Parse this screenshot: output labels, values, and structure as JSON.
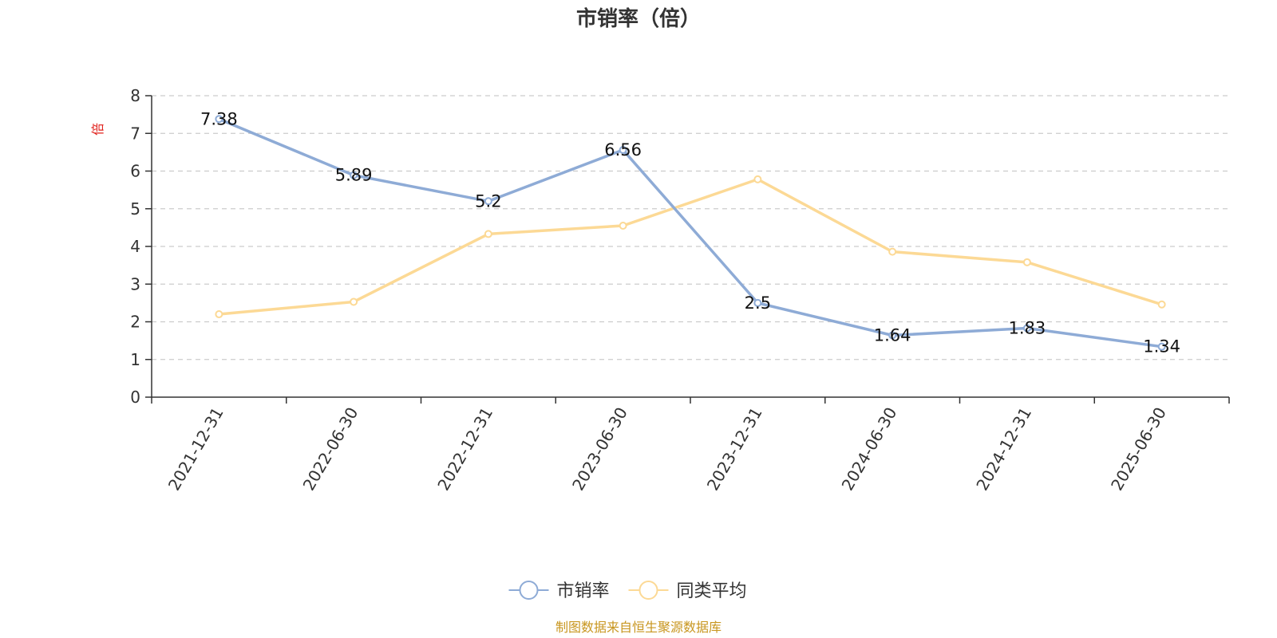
{
  "chart_data": {
    "type": "line",
    "title": "市销率（倍）",
    "unit": "倍",
    "categories": [
      "2021-12-31",
      "2022-06-30",
      "2022-12-31",
      "2023-06-30",
      "2023-12-31",
      "2024-06-30",
      "2024-12-31",
      "2025-06-30"
    ],
    "ylim": [
      0,
      8
    ],
    "yticks": [
      0,
      1,
      2,
      3,
      4,
      5,
      6,
      7,
      8
    ],
    "grid": true,
    "legend": "bottom-center",
    "series": [
      {
        "name": "市销率",
        "color": "#8eabd6",
        "values": [
          7.38,
          5.89,
          5.2,
          6.56,
          2.5,
          1.64,
          1.83,
          1.34
        ],
        "show_labels": true
      },
      {
        "name": "同类平均",
        "color": "#fcd995",
        "values": [
          2.2,
          2.53,
          4.33,
          4.55,
          5.78,
          3.86,
          3.58,
          2.46
        ],
        "show_labels": false
      }
    ],
    "source": "制图数据来自恒生聚源数据库"
  }
}
